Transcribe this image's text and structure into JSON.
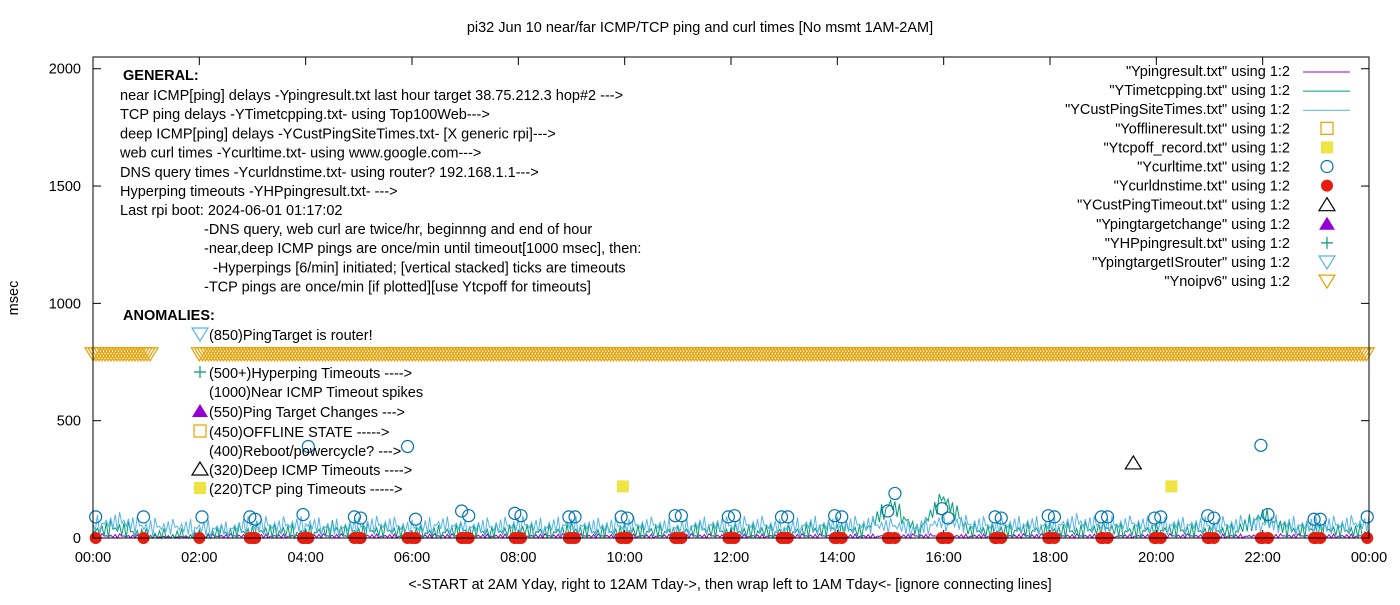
{
  "chart_data": {
    "type": "line",
    "title": "pi32 Jun 10  near/far ICMP/TCP ping and curl times [No msmt 1AM-2AM]",
    "xlabel": "<-START at 2AM Yday, right to 12AM Tday->, then wrap left to 1AM Tday<- [ignore connecting lines]",
    "ylabel": "msec",
    "xlim": [
      "00:00",
      "24:00"
    ],
    "ylim": [
      0,
      2050
    ],
    "x_ticks": [
      "00:00",
      "02:00",
      "04:00",
      "06:00",
      "08:00",
      "10:00",
      "12:00",
      "14:00",
      "16:00",
      "18:00",
      "20:00",
      "22:00",
      "00:00"
    ],
    "y_ticks": [
      0,
      500,
      1000,
      1500,
      2000
    ],
    "grid": false,
    "legend_placement": "top-right",
    "colors": {
      "ping": "#9400d3",
      "tcp": "#009e73",
      "cust": "#56b4e9",
      "offline": "#e69f00",
      "tcpoff": "#f0e442",
      "curl": "#0072b2",
      "dns": "#e51e10",
      "custtimeout": "#000000",
      "targetchange": "#9400d3",
      "hp": "#009e73",
      "isrouter": "#56b4e9",
      "noipv6": "#e69f00"
    },
    "line_times": [
      "00:00",
      "00:30",
      "01:00",
      "01:30",
      "02:00",
      "02:30",
      "03:00",
      "03:30",
      "04:00",
      "04:30",
      "05:00",
      "05:30",
      "06:00",
      "06:30",
      "07:00",
      "07:30",
      "08:00",
      "08:30",
      "09:00",
      "09:30",
      "10:00",
      "10:30",
      "11:00",
      "11:30",
      "12:00",
      "12:30",
      "13:00",
      "13:30",
      "14:00",
      "14:30",
      "15:00",
      "15:30",
      "16:00",
      "16:30",
      "17:00",
      "17:30",
      "18:00",
      "18:30",
      "19:00",
      "19:30",
      "20:00",
      "20:30",
      "21:00",
      "21:30",
      "22:00",
      "22:30",
      "23:00",
      "23:30",
      "24:00"
    ],
    "series": [
      {
        "name": "\"Ypingresult.txt\" using 1:2",
        "style": "line",
        "color_key": "ping",
        "values": [
          8,
          8,
          5,
          5,
          5,
          8,
          8,
          8,
          8,
          8,
          8,
          8,
          8,
          8,
          8,
          8,
          8,
          8,
          8,
          8,
          8,
          8,
          8,
          8,
          8,
          8,
          8,
          8,
          8,
          8,
          8,
          8,
          8,
          8,
          8,
          8,
          8,
          8,
          8,
          8,
          8,
          8,
          8,
          8,
          8,
          8,
          8,
          8,
          8
        ]
      },
      {
        "name": "\"YTimetcpping.txt\" using 1:2",
        "style": "line",
        "color_key": "tcp",
        "values": [
          30,
          40,
          5,
          5,
          5,
          20,
          25,
          30,
          20,
          35,
          25,
          30,
          20,
          25,
          30,
          20,
          35,
          25,
          30,
          20,
          25,
          30,
          25,
          35,
          20,
          30,
          25,
          30,
          40,
          25,
          150,
          30,
          170,
          25,
          30,
          35,
          30,
          25,
          40,
          30,
          35,
          30,
          25,
          30,
          100,
          30,
          35,
          30,
          25
        ]
      },
      {
        "name": "\"YCustPingSiteTimes.txt\" using 1:2",
        "style": "line",
        "color_key": "cust",
        "values": [
          60,
          70,
          45,
          45,
          45,
          40,
          55,
          50,
          60,
          45,
          50,
          55,
          40,
          60,
          50,
          45,
          55,
          50,
          60,
          45,
          50,
          55,
          45,
          60,
          50,
          55,
          45,
          60,
          50,
          55,
          50,
          45,
          70,
          55,
          50,
          60,
          55,
          65,
          50,
          60,
          55,
          60,
          50,
          55,
          65,
          60,
          50,
          55,
          60
        ]
      },
      {
        "name": "\"Yofflineresult.txt\" using 1:2",
        "style": "open-square",
        "color_key": "offline",
        "points": []
      },
      {
        "name": "\"Ytcpoff_record.txt\" using 1:2",
        "style": "filled-square",
        "color_key": "tcpoff",
        "points": [
          [
            "09:58",
            220
          ],
          [
            "20:17",
            220
          ]
        ]
      },
      {
        "name": "\"Ycurltime.txt\" using 1:2",
        "style": "open-circle",
        "color_key": "curl",
        "points": [
          [
            "00:03",
            90
          ],
          [
            "00:57",
            90
          ],
          [
            "02:03",
            90
          ],
          [
            "02:57",
            90
          ],
          [
            "03:03",
            80
          ],
          [
            "03:57",
            100
          ],
          [
            "04:03",
            390
          ],
          [
            "04:55",
            90
          ],
          [
            "05:02",
            85
          ],
          [
            "05:55",
            390
          ],
          [
            "06:04",
            80
          ],
          [
            "06:56",
            115
          ],
          [
            "07:04",
            95
          ],
          [
            "07:56",
            105
          ],
          [
            "08:03",
            95
          ],
          [
            "08:57",
            90
          ],
          [
            "09:04",
            90
          ],
          [
            "09:56",
            90
          ],
          [
            "10:03",
            85
          ],
          [
            "10:57",
            95
          ],
          [
            "11:04",
            95
          ],
          [
            "11:57",
            90
          ],
          [
            "12:04",
            95
          ],
          [
            "12:57",
            90
          ],
          [
            "13:04",
            90
          ],
          [
            "13:57",
            95
          ],
          [
            "14:05",
            90
          ],
          [
            "14:57",
            115
          ],
          [
            "15:05",
            190
          ],
          [
            "15:58",
            125
          ],
          [
            "16:05",
            85
          ],
          [
            "16:58",
            90
          ],
          [
            "17:05",
            85
          ],
          [
            "17:58",
            95
          ],
          [
            "18:05",
            90
          ],
          [
            "18:58",
            90
          ],
          [
            "19:05",
            90
          ],
          [
            "19:58",
            85
          ],
          [
            "20:05",
            90
          ],
          [
            "20:58",
            95
          ],
          [
            "21:05",
            85
          ],
          [
            "21:58",
            395
          ],
          [
            "22:06",
            100
          ],
          [
            "22:58",
            80
          ],
          [
            "23:05",
            80
          ],
          [
            "23:58",
            90
          ]
        ]
      },
      {
        "name": "\"Ycurldnstime.txt\" using 1:2",
        "style": "filled-circle",
        "color_key": "dns",
        "points": [
          [
            "00:03",
            0
          ],
          [
            "00:57",
            0
          ],
          [
            "02:00",
            0
          ],
          [
            "02:57",
            0
          ],
          [
            "03:00",
            0
          ],
          [
            "03:03",
            0
          ],
          [
            "03:57",
            0
          ],
          [
            "04:00",
            0
          ],
          [
            "04:03",
            0
          ],
          [
            "04:55",
            0
          ],
          [
            "05:00",
            0
          ],
          [
            "05:02",
            0
          ],
          [
            "05:55",
            0
          ],
          [
            "06:00",
            0
          ],
          [
            "06:04",
            0
          ],
          [
            "06:56",
            0
          ],
          [
            "07:00",
            0
          ],
          [
            "07:04",
            0
          ],
          [
            "07:56",
            0
          ],
          [
            "08:00",
            0
          ],
          [
            "08:03",
            0
          ],
          [
            "08:57",
            0
          ],
          [
            "09:00",
            0
          ],
          [
            "09:04",
            0
          ],
          [
            "09:56",
            0
          ],
          [
            "10:00",
            0
          ],
          [
            "10:03",
            0
          ],
          [
            "10:57",
            0
          ],
          [
            "11:00",
            0
          ],
          [
            "11:04",
            0
          ],
          [
            "11:57",
            0
          ],
          [
            "12:00",
            0
          ],
          [
            "12:04",
            0
          ],
          [
            "12:57",
            0
          ],
          [
            "13:00",
            0
          ],
          [
            "13:04",
            0
          ],
          [
            "13:57",
            0
          ],
          [
            "14:00",
            0
          ],
          [
            "14:05",
            0
          ],
          [
            "14:57",
            0
          ],
          [
            "15:00",
            0
          ],
          [
            "15:05",
            0
          ],
          [
            "15:58",
            0
          ],
          [
            "16:00",
            0
          ],
          [
            "16:05",
            0
          ],
          [
            "16:58",
            0
          ],
          [
            "17:00",
            0
          ],
          [
            "17:05",
            0
          ],
          [
            "17:58",
            0
          ],
          [
            "18:00",
            0
          ],
          [
            "18:05",
            0
          ],
          [
            "18:58",
            0
          ],
          [
            "19:00",
            0
          ],
          [
            "19:05",
            0
          ],
          [
            "19:58",
            0
          ],
          [
            "20:00",
            0
          ],
          [
            "20:05",
            0
          ],
          [
            "20:58",
            0
          ],
          [
            "21:00",
            0
          ],
          [
            "21:05",
            0
          ],
          [
            "21:58",
            0
          ],
          [
            "22:00",
            0
          ],
          [
            "22:06",
            0
          ],
          [
            "22:58",
            0
          ],
          [
            "23:00",
            0
          ],
          [
            "23:05",
            0
          ],
          [
            "23:58",
            0
          ]
        ]
      },
      {
        "name": "\"YCustPingTimeout.txt\" using 1:2",
        "style": "open-triangle",
        "color_key": "custtimeout",
        "points": [
          [
            "19:34",
            320
          ]
        ]
      },
      {
        "name": "\"Ypingtargetchange\" using 1:2",
        "style": "filled-triangle",
        "color_key": "targetchange",
        "points": []
      },
      {
        "name": "\"YHPpingresult.txt\" using 1:2",
        "style": "plus",
        "color_key": "hp",
        "points": []
      },
      {
        "name": "\"YpingtargetISrouter\" using 1:2",
        "style": "open-down-triangle",
        "color_key": "isrouter",
        "points": []
      },
      {
        "name": "\"Ynoipv6\" using 1:2",
        "style": "open-down-triangle",
        "color_key": "noipv6",
        "ranges": [
          {
            "from": "00:00",
            "to": "01:05",
            "y": 785
          },
          {
            "from": "02:00",
            "to": "24:00",
            "y": 785
          }
        ]
      }
    ],
    "annotations": {
      "general_title": "GENERAL:",
      "general_lines": [
        "near ICMP[ping] delays -Ypingresult.txt last hour target 38.75.212.3 hop#2 --->",
        "TCP ping delays -YTimetcpping.txt- using Top100Web--->",
        "deep ICMP[ping] delays -YCustPingSiteTimes.txt- [X generic rpi]--->",
        "web curl times -Ycurltime.txt- using www.google.com--->",
        "DNS query times -Ycurldnstime.txt- using router? 192.168.1.1--->",
        "Hyperping timeouts -YHPpingresult.txt- --->",
        "Last rpi boot: 2024-06-01 01:17:02"
      ],
      "notes": [
        "-DNS query, web curl are twice/hr, beginnng and end of hour",
        "-near,deep ICMP pings are once/min until timeout[1000 msec], then:",
        "-Hyperpings [6/min] initiated; [vertical stacked] ticks are timeouts",
        "-TCP pings are once/min [if plotted][use Ytcpoff for timeouts]"
      ],
      "anomalies_title": "ANOMALIES:",
      "anomalies": [
        {
          "text": "(850)PingTarget is router!",
          "marker": "open-down-triangle",
          "color_key": "isrouter"
        },
        {
          "text": "(500+)Hyperping Timeouts ---->",
          "marker": "plus",
          "color_key": "hp"
        },
        {
          "text": "(1000)Near ICMP Timeout spikes",
          "marker": "none",
          "color_key": "ping"
        },
        {
          "text": "(550)Ping Target Changes --->",
          "marker": "filled-triangle",
          "color_key": "targetchange"
        },
        {
          "text": "(450)OFFLINE STATE ----->",
          "marker": "open-square",
          "color_key": "offline"
        },
        {
          "text": "(400)Reboot/powercycle? --->",
          "marker": "none",
          "color_key": "ping"
        },
        {
          "text": "(320)Deep ICMP Timeouts ---->",
          "marker": "open-triangle",
          "color_key": "custtimeout"
        },
        {
          "text": "(220)TCP ping Timeouts ----->",
          "marker": "filled-square",
          "color_key": "tcpoff"
        }
      ]
    }
  }
}
